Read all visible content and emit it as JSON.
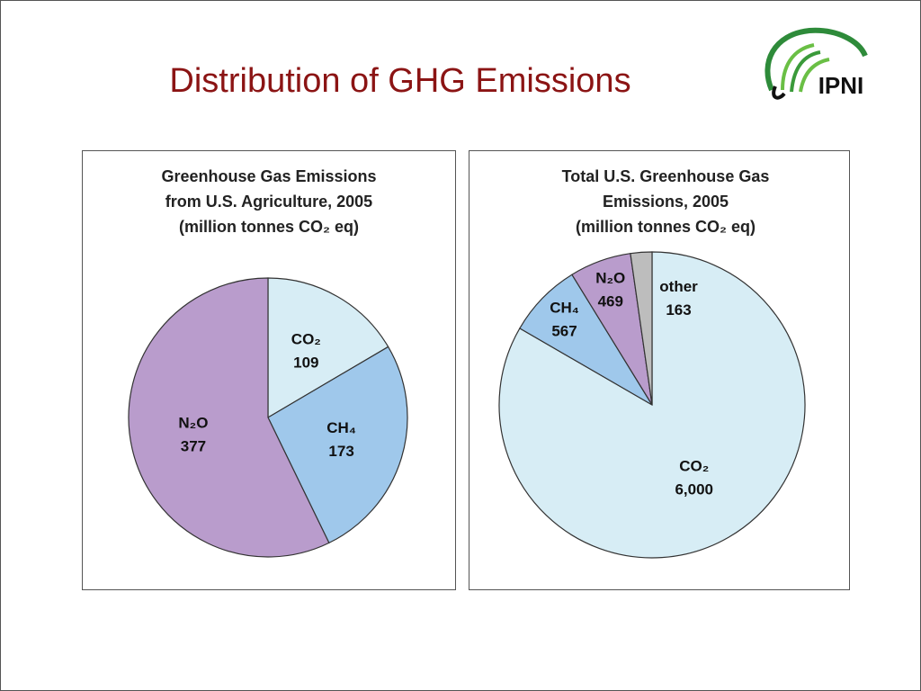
{
  "title": "Distribution of GHG Emissions",
  "logo": "IPNI",
  "chart_data": [
    {
      "type": "pie",
      "title": [
        "Greenhouse Gas Emissions",
        "from U.S. Agriculture, 2005",
        "(million tonnes CO₂ eq)"
      ],
      "categories": [
        "CO₂",
        "CH₄",
        "N₂O"
      ],
      "values": [
        109,
        173,
        377
      ],
      "colors": [
        "#d7edf5",
        "#9fc8eb",
        "#b99ccc"
      ]
    },
    {
      "type": "pie",
      "title": [
        "Total U.S. Greenhouse Gas",
        "Emissions, 2005",
        "(million tonnes CO₂ eq)"
      ],
      "categories": [
        "CO₂",
        "CH₄",
        "N₂O",
        "other"
      ],
      "values": [
        6000,
        567,
        469,
        163
      ],
      "value_labels": [
        "6,000",
        "567",
        "469",
        "163"
      ],
      "colors": [
        "#d7edf5",
        "#9fc8eb",
        "#b99ccc",
        "#bdbdbd"
      ]
    }
  ]
}
